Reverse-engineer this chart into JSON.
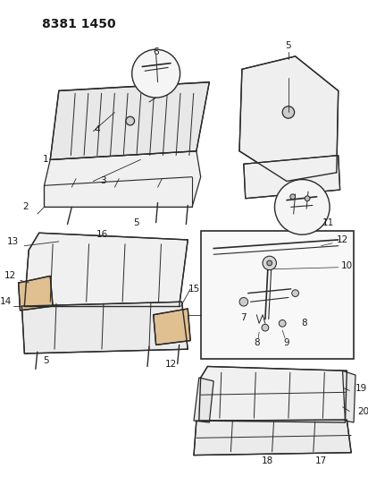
{
  "title": "8381 1450",
  "bg_color": "#ffffff",
  "line_color": "#2a2a2a",
  "text_color": "#1a1a1a",
  "title_fontsize": 11,
  "label_fontsize": 7.5,
  "fig_width": 4.12,
  "fig_height": 5.33,
  "dpi": 100
}
